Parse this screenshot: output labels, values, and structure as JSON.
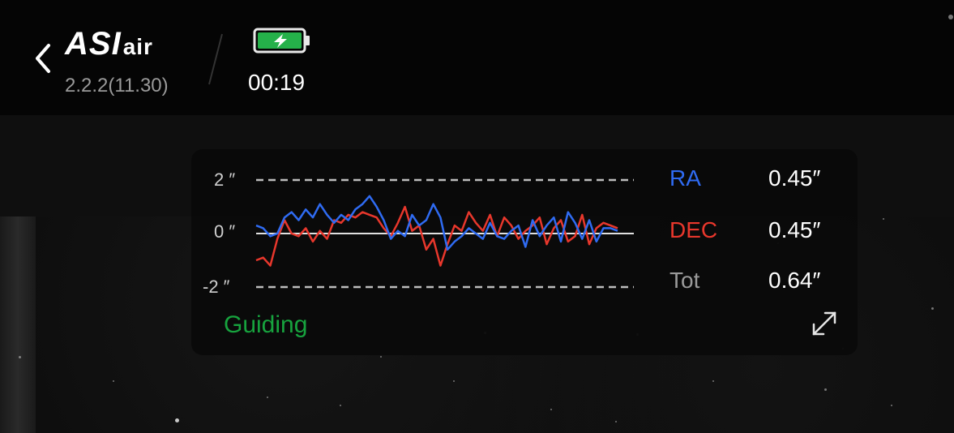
{
  "header": {
    "logo_main": "ASI",
    "logo_sub": "air",
    "version": "2.2.2(11.30)",
    "time": "00:19",
    "icons": {
      "back": "chevron-left-icon",
      "battery": "battery-charging-icon"
    }
  },
  "guide_panel": {
    "y_labels": {
      "top": "2 ″",
      "mid": "0 ″",
      "bottom": "-2 ″"
    },
    "stats": [
      {
        "name": "RA",
        "value": "0.45″",
        "color": "#2f6bf2"
      },
      {
        "name": "DEC",
        "value": "0.45″",
        "color": "#e8372c"
      },
      {
        "name": "Tot",
        "value": "0.64″",
        "color": "#9a9a9a"
      }
    ],
    "status": "Guiding",
    "status_color": "#17a33e",
    "expand_icon": "expand-icon"
  },
  "chart_data": {
    "type": "line",
    "ylim": [
      -2,
      2
    ],
    "series": [
      {
        "name": "RA",
        "color": "#2f6bf2",
        "values": [
          0.3,
          0.2,
          -0.1,
          0.0,
          0.6,
          0.8,
          0.5,
          0.9,
          0.6,
          1.1,
          0.7,
          0.4,
          0.7,
          0.5,
          0.9,
          1.1,
          1.4,
          1.0,
          0.5,
          -0.2,
          0.1,
          -0.1,
          0.7,
          0.3,
          0.5,
          1.1,
          0.6,
          -0.6,
          -0.3,
          -0.1,
          0.2,
          0.0,
          -0.2,
          0.4,
          -0.1,
          -0.2,
          0.1,
          0.3,
          -0.5,
          0.5,
          -0.1,
          0.3,
          0.6,
          -0.3,
          0.8,
          0.4,
          -0.2,
          0.5,
          -0.3,
          0.2,
          0.2,
          0.1
        ]
      },
      {
        "name": "DEC",
        "color": "#e8372c",
        "values": [
          -1.0,
          -0.9,
          -1.2,
          -0.2,
          0.5,
          0.0,
          -0.1,
          0.2,
          -0.3,
          0.1,
          -0.2,
          0.5,
          0.4,
          0.7,
          0.6,
          0.8,
          0.7,
          0.6,
          0.2,
          -0.1,
          0.4,
          1.0,
          0.1,
          0.3,
          -0.6,
          -0.2,
          -1.2,
          -0.4,
          0.3,
          0.1,
          0.8,
          0.4,
          0.1,
          0.7,
          -0.1,
          0.6,
          0.3,
          -0.2,
          0.1,
          0.3,
          0.6,
          -0.4,
          0.2,
          0.5,
          -0.3,
          -0.1,
          0.7,
          -0.4,
          0.2,
          0.4,
          0.3,
          0.2
        ]
      }
    ]
  }
}
